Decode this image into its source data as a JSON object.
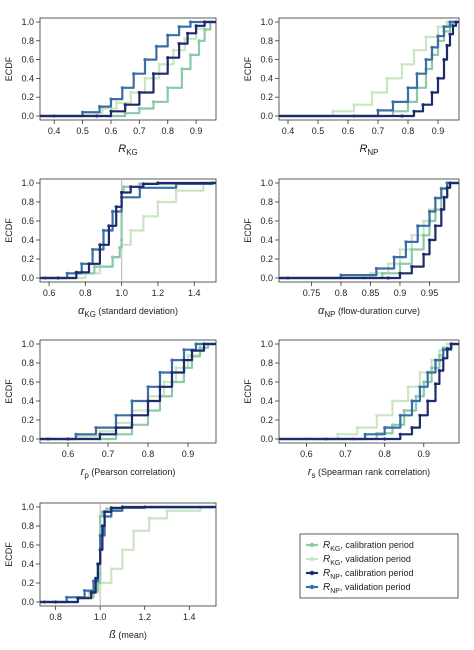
{
  "colors": {
    "RKG_cal": "#8cc9a8",
    "RKG_val": "#c9e6c1",
    "RNP_cal": "#1f2a6e",
    "RNP_val": "#3b6fa4",
    "axis": "#333333"
  },
  "legend": {
    "items": [
      {
        "base": "R",
        "sub": "KG",
        "text": ", calibration period",
        "series": "RKG_cal"
      },
      {
        "base": "R",
        "sub": "KG",
        "text": ", validation period",
        "series": "RKG_val"
      },
      {
        "base": "R",
        "sub": "NP",
        "text": ", calibration period",
        "series": "RNP_cal"
      },
      {
        "base": "R",
        "sub": "NP",
        "text": ", validation period",
        "series": "RNP_val"
      }
    ]
  },
  "chart_data": [
    {
      "type": "line",
      "ylabel": "ECDF",
      "xlabel": {
        "base": "R",
        "sub": "KG",
        "rest": ""
      },
      "xlim": [
        0.35,
        0.97
      ],
      "ylim": [
        0,
        1
      ],
      "xticks": [
        0.4,
        0.5,
        0.6,
        0.7,
        0.8,
        0.9
      ],
      "yticks": [
        0.0,
        0.2,
        0.4,
        0.6,
        0.8,
        1.0
      ],
      "series": [
        {
          "key": "RKG_cal",
          "x": [
            0.6,
            0.65,
            0.7,
            0.75,
            0.8,
            0.85,
            0.88,
            0.91,
            0.93,
            0.95
          ],
          "y": [
            0,
            0.03,
            0.08,
            0.15,
            0.3,
            0.5,
            0.65,
            0.8,
            0.92,
            1.0
          ]
        },
        {
          "key": "RKG_val",
          "x": [
            0.42,
            0.5,
            0.57,
            0.62,
            0.67,
            0.72,
            0.77,
            0.82,
            0.86,
            0.9,
            0.93
          ],
          "y": [
            0,
            0.03,
            0.08,
            0.14,
            0.25,
            0.4,
            0.55,
            0.7,
            0.82,
            0.93,
            1.0
          ]
        },
        {
          "key": "RNP_cal",
          "x": [
            0.55,
            0.6,
            0.65,
            0.7,
            0.75,
            0.8,
            0.84,
            0.87,
            0.9,
            0.93
          ],
          "y": [
            0,
            0.05,
            0.12,
            0.25,
            0.45,
            0.62,
            0.77,
            0.88,
            0.96,
            1.0
          ]
        },
        {
          "key": "RNP_val",
          "x": [
            0.4,
            0.5,
            0.56,
            0.6,
            0.64,
            0.68,
            0.72,
            0.76,
            0.8,
            0.84,
            0.88
          ],
          "y": [
            0,
            0.04,
            0.1,
            0.18,
            0.3,
            0.45,
            0.6,
            0.74,
            0.86,
            0.95,
            1.0
          ]
        }
      ]
    },
    {
      "type": "line",
      "ylabel": "ECDF",
      "xlabel": {
        "base": "R",
        "sub": "NP",
        "rest": ""
      },
      "xlim": [
        0.37,
        0.97
      ],
      "ylim": [
        0,
        1
      ],
      "xticks": [
        0.4,
        0.5,
        0.6,
        0.7,
        0.8,
        0.9
      ],
      "yticks": [
        0.0,
        0.2,
        0.4,
        0.6,
        0.8,
        1.0
      ],
      "series": [
        {
          "key": "RKG_cal",
          "x": [
            0.7,
            0.75,
            0.8,
            0.83,
            0.86,
            0.88,
            0.9,
            0.92,
            0.94,
            0.95
          ],
          "y": [
            0,
            0.05,
            0.15,
            0.3,
            0.5,
            0.65,
            0.8,
            0.9,
            0.97,
            1.0
          ]
        },
        {
          "key": "RKG_val",
          "x": [
            0.45,
            0.55,
            0.62,
            0.68,
            0.73,
            0.78,
            0.82,
            0.86,
            0.9,
            0.93
          ],
          "y": [
            0,
            0.05,
            0.12,
            0.25,
            0.4,
            0.55,
            0.7,
            0.84,
            0.95,
            1.0
          ]
        },
        {
          "key": "RNP_cal",
          "x": [
            0.78,
            0.82,
            0.85,
            0.88,
            0.9,
            0.92,
            0.93,
            0.94,
            0.95,
            0.96
          ],
          "y": [
            0,
            0.05,
            0.12,
            0.25,
            0.4,
            0.6,
            0.75,
            0.87,
            0.96,
            1.0
          ]
        },
        {
          "key": "RNP_val",
          "x": [
            0.62,
            0.7,
            0.75,
            0.8,
            0.83,
            0.86,
            0.88,
            0.9,
            0.92,
            0.94
          ],
          "y": [
            0,
            0.06,
            0.15,
            0.3,
            0.45,
            0.6,
            0.73,
            0.85,
            0.95,
            1.0
          ]
        }
      ]
    },
    {
      "type": "line",
      "ylabel": "ECDF",
      "xlabel": {
        "base": "α",
        "sub": "KG",
        "rest": " (standard deviation)"
      },
      "xlim": [
        0.55,
        1.52
      ],
      "ylim": [
        0,
        1
      ],
      "xticks": [
        0.6,
        0.8,
        1.0,
        1.2,
        1.4
      ],
      "yticks": [
        0.0,
        0.2,
        0.4,
        0.6,
        0.8,
        1.0
      ],
      "series": [
        {
          "key": "RKG_cal",
          "x": [
            0.62,
            0.75,
            0.85,
            0.95,
            0.99,
            1.0,
            1.0,
            1.01,
            1.1,
            1.5
          ],
          "y": [
            0,
            0.05,
            0.12,
            0.22,
            0.32,
            0.4,
            0.9,
            0.96,
            0.99,
            1.0
          ]
        },
        {
          "key": "RKG_val",
          "x": [
            0.7,
            0.8,
            0.88,
            0.95,
            1.0,
            1.05,
            1.12,
            1.2,
            1.3,
            1.45
          ],
          "y": [
            0,
            0.05,
            0.12,
            0.22,
            0.35,
            0.5,
            0.65,
            0.8,
            0.92,
            1.0
          ]
        },
        {
          "key": "RNP_cal",
          "x": [
            0.65,
            0.75,
            0.82,
            0.88,
            0.93,
            0.97,
            1.0,
            1.05,
            1.12,
            1.2
          ],
          "y": [
            0,
            0.06,
            0.15,
            0.35,
            0.55,
            0.75,
            0.9,
            0.96,
            0.99,
            1.0
          ]
        },
        {
          "key": "RNP_val",
          "x": [
            0.58,
            0.7,
            0.78,
            0.84,
            0.9,
            0.95,
            1.0,
            1.1,
            1.3,
            1.5
          ],
          "y": [
            0,
            0.05,
            0.15,
            0.3,
            0.5,
            0.7,
            0.85,
            0.95,
            0.99,
            1.0
          ]
        }
      ]
    },
    {
      "type": "line",
      "ylabel": "ECDF",
      "xlabel": {
        "base": "α",
        "sub": "NP",
        "rest": " (flow-duration curve)"
      },
      "xlim": [
        0.695,
        1.0
      ],
      "ylim": [
        0,
        1
      ],
      "xticks": [
        0.75,
        0.8,
        0.85,
        0.9,
        0.95
      ],
      "yticks": [
        0.0,
        0.2,
        0.4,
        0.6,
        0.8,
        1.0
      ],
      "series": [
        {
          "key": "RKG_cal",
          "x": [
            0.84,
            0.87,
            0.9,
            0.92,
            0.94,
            0.95,
            0.96,
            0.97,
            0.98,
            0.985
          ],
          "y": [
            0,
            0.05,
            0.15,
            0.3,
            0.45,
            0.6,
            0.72,
            0.85,
            0.95,
            1.0
          ]
        },
        {
          "key": "RKG_val",
          "x": [
            0.8,
            0.85,
            0.88,
            0.9,
            0.92,
            0.94,
            0.95,
            0.96,
            0.97,
            0.98
          ],
          "y": [
            0,
            0.05,
            0.15,
            0.3,
            0.45,
            0.6,
            0.72,
            0.85,
            0.95,
            1.0
          ]
        },
        {
          "key": "RNP_cal",
          "x": [
            0.88,
            0.9,
            0.92,
            0.94,
            0.95,
            0.96,
            0.97,
            0.975,
            0.98,
            0.985
          ],
          "y": [
            0,
            0.05,
            0.12,
            0.25,
            0.4,
            0.55,
            0.72,
            0.85,
            0.95,
            1.0
          ]
        },
        {
          "key": "RNP_val",
          "x": [
            0.71,
            0.8,
            0.86,
            0.89,
            0.91,
            0.93,
            0.95,
            0.96,
            0.97,
            0.98
          ],
          "y": [
            0,
            0.03,
            0.1,
            0.22,
            0.38,
            0.55,
            0.7,
            0.84,
            0.94,
            1.0
          ]
        }
      ]
    },
    {
      "type": "line",
      "ylabel": "ECDF",
      "xlabel": {
        "base": "r",
        "sub": "p",
        "rest": " (Pearson correlation)"
      },
      "xlim": [
        0.53,
        0.97
      ],
      "ylim": [
        0,
        1
      ],
      "xticks": [
        0.6,
        0.7,
        0.8,
        0.9
      ],
      "yticks": [
        0.0,
        0.2,
        0.4,
        0.6,
        0.8,
        1.0
      ],
      "series": [
        {
          "key": "RKG_cal",
          "x": [
            0.68,
            0.72,
            0.76,
            0.8,
            0.83,
            0.86,
            0.89,
            0.91,
            0.93,
            0.95
          ],
          "y": [
            0,
            0.05,
            0.15,
            0.3,
            0.45,
            0.6,
            0.75,
            0.87,
            0.96,
            1.0
          ]
        },
        {
          "key": "RKG_val",
          "x": [
            0.55,
            0.62,
            0.68,
            0.72,
            0.76,
            0.8,
            0.84,
            0.87,
            0.9,
            0.93
          ],
          "y": [
            0,
            0.03,
            0.08,
            0.17,
            0.3,
            0.45,
            0.6,
            0.75,
            0.88,
            1.0
          ]
        },
        {
          "key": "RNP_cal",
          "x": [
            0.6,
            0.68,
            0.72,
            0.76,
            0.8,
            0.83,
            0.86,
            0.89,
            0.91,
            0.94
          ],
          "y": [
            0,
            0.05,
            0.12,
            0.25,
            0.4,
            0.55,
            0.7,
            0.83,
            0.93,
            1.0
          ]
        },
        {
          "key": "RNP_val",
          "x": [
            0.55,
            0.62,
            0.67,
            0.72,
            0.76,
            0.8,
            0.83,
            0.86,
            0.89,
            0.92
          ],
          "y": [
            0,
            0.05,
            0.12,
            0.25,
            0.4,
            0.55,
            0.7,
            0.83,
            0.94,
            1.0
          ]
        }
      ]
    },
    {
      "type": "line",
      "ylabel": "ECDF",
      "xlabel": {
        "base": "r",
        "sub": "s",
        "rest": " (Spearman rank correlation)"
      },
      "xlim": [
        0.53,
        0.99
      ],
      "ylim": [
        0,
        1
      ],
      "xticks": [
        0.6,
        0.7,
        0.8,
        0.9
      ],
      "yticks": [
        0.0,
        0.2,
        0.4,
        0.6,
        0.8,
        1.0
      ],
      "series": [
        {
          "key": "RKG_cal",
          "x": [
            0.72,
            0.78,
            0.82,
            0.85,
            0.88,
            0.9,
            0.92,
            0.94,
            0.95,
            0.97
          ],
          "y": [
            0,
            0.06,
            0.15,
            0.3,
            0.45,
            0.6,
            0.75,
            0.88,
            0.96,
            1.0
          ]
        },
        {
          "key": "RKG_val",
          "x": [
            0.6,
            0.68,
            0.73,
            0.78,
            0.82,
            0.86,
            0.89,
            0.92,
            0.94,
            0.96
          ],
          "y": [
            0,
            0.05,
            0.12,
            0.25,
            0.4,
            0.55,
            0.7,
            0.83,
            0.93,
            1.0
          ]
        },
        {
          "key": "RNP_cal",
          "x": [
            0.8,
            0.84,
            0.87,
            0.89,
            0.91,
            0.93,
            0.94,
            0.95,
            0.96,
            0.97
          ],
          "y": [
            0,
            0.05,
            0.12,
            0.25,
            0.4,
            0.58,
            0.72,
            0.85,
            0.95,
            1.0
          ]
        },
        {
          "key": "RNP_val",
          "x": [
            0.65,
            0.75,
            0.8,
            0.84,
            0.87,
            0.89,
            0.91,
            0.93,
            0.95,
            0.97
          ],
          "y": [
            0,
            0.05,
            0.12,
            0.25,
            0.4,
            0.55,
            0.7,
            0.83,
            0.94,
            1.0
          ]
        }
      ]
    },
    {
      "type": "line",
      "ylabel": "ECDF",
      "xlabel": {
        "base": "ß",
        "sub": "",
        "rest": " (mean)"
      },
      "xlim": [
        0.73,
        1.52
      ],
      "ylim": [
        0,
        1
      ],
      "xticks": [
        0.8,
        1.0,
        1.2,
        1.4
      ],
      "yticks": [
        0.0,
        0.2,
        0.4,
        0.6,
        0.8,
        1.0
      ],
      "series": [
        {
          "key": "RKG_cal",
          "x": [
            0.75,
            0.9,
            0.97,
            0.99,
            1.0,
            1.0,
            1.01,
            1.03,
            1.1,
            1.5
          ],
          "y": [
            0,
            0.05,
            0.12,
            0.2,
            0.3,
            0.9,
            0.95,
            0.98,
            0.995,
            1.0
          ]
        },
        {
          "key": "RKG_val",
          "x": [
            0.8,
            0.9,
            0.95,
            1.0,
            1.05,
            1.1,
            1.15,
            1.22,
            1.3,
            1.45
          ],
          "y": [
            0,
            0.04,
            0.1,
            0.2,
            0.35,
            0.55,
            0.75,
            0.88,
            0.96,
            1.0
          ]
        },
        {
          "key": "RNP_cal",
          "x": [
            0.8,
            0.9,
            0.96,
            0.98,
            0.99,
            1.0,
            1.01,
            1.02,
            1.05,
            1.1
          ],
          "y": [
            0,
            0.04,
            0.1,
            0.25,
            0.4,
            0.55,
            0.8,
            0.95,
            0.99,
            1.0
          ]
        },
        {
          "key": "RNP_val",
          "x": [
            0.75,
            0.85,
            0.93,
            0.97,
            0.99,
            1.0,
            1.02,
            1.05,
            1.1,
            1.2
          ],
          "y": [
            0,
            0.05,
            0.12,
            0.22,
            0.4,
            0.7,
            0.9,
            0.96,
            0.99,
            1.0
          ]
        }
      ]
    }
  ]
}
